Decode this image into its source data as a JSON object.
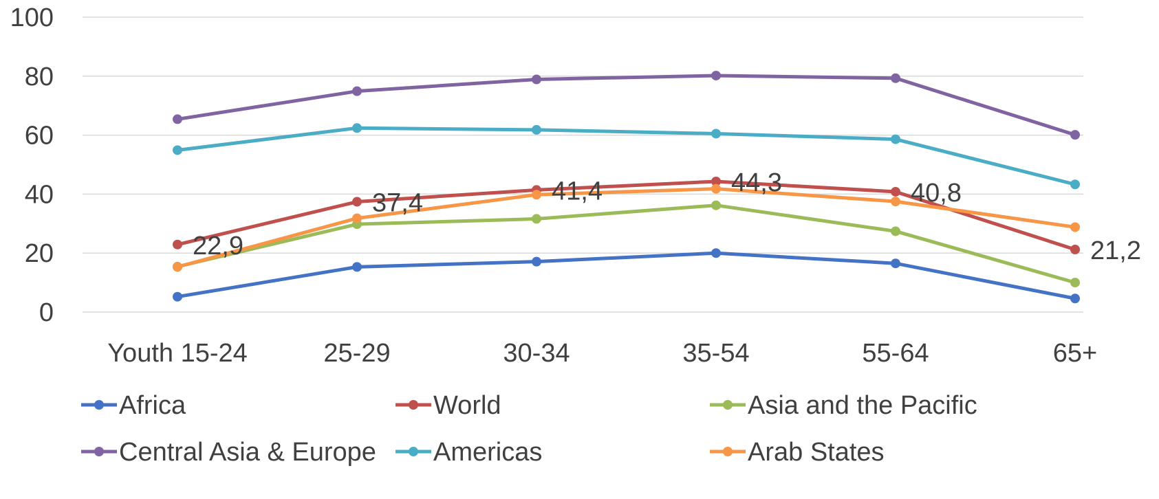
{
  "chart_data": {
    "type": "line",
    "title": "",
    "xlabel": "",
    "ylabel": "",
    "categories": [
      "Youth 15-24",
      "25-29",
      "30-34",
      "35-54",
      "55-64",
      "65+"
    ],
    "ylim": [
      0,
      100
    ],
    "yticks": [
      0,
      20,
      40,
      60,
      80,
      100
    ],
    "grid": "horizontal",
    "legend_position": "bottom",
    "series": [
      {
        "name": "Africa",
        "color": "#4472C4",
        "values": [
          5.2,
          15.3,
          17.1,
          20.0,
          16.5,
          4.6
        ]
      },
      {
        "name": "World",
        "color": "#C0504D",
        "values": [
          22.9,
          37.4,
          41.4,
          44.3,
          40.8,
          21.2
        ],
        "data_labels": [
          "22,9",
          "37,4",
          "41,4",
          "44,3",
          "40,8",
          "21,2"
        ]
      },
      {
        "name": "Asia and the Pacific",
        "color": "#9BBB59",
        "values": [
          15.4,
          29.8,
          31.6,
          36.2,
          27.4,
          10.0
        ]
      },
      {
        "name": "Central Asia & Europe",
        "color": "#8064A2",
        "values": [
          65.4,
          74.9,
          78.9,
          80.2,
          79.3,
          60.1
        ]
      },
      {
        "name": "Americas",
        "color": "#4BACC6",
        "values": [
          54.9,
          62.4,
          61.8,
          60.5,
          58.6,
          43.3
        ]
      },
      {
        "name": "Arab States",
        "color": "#F79646",
        "values": [
          15.3,
          31.8,
          39.8,
          41.8,
          37.5,
          28.8
        ]
      }
    ]
  }
}
